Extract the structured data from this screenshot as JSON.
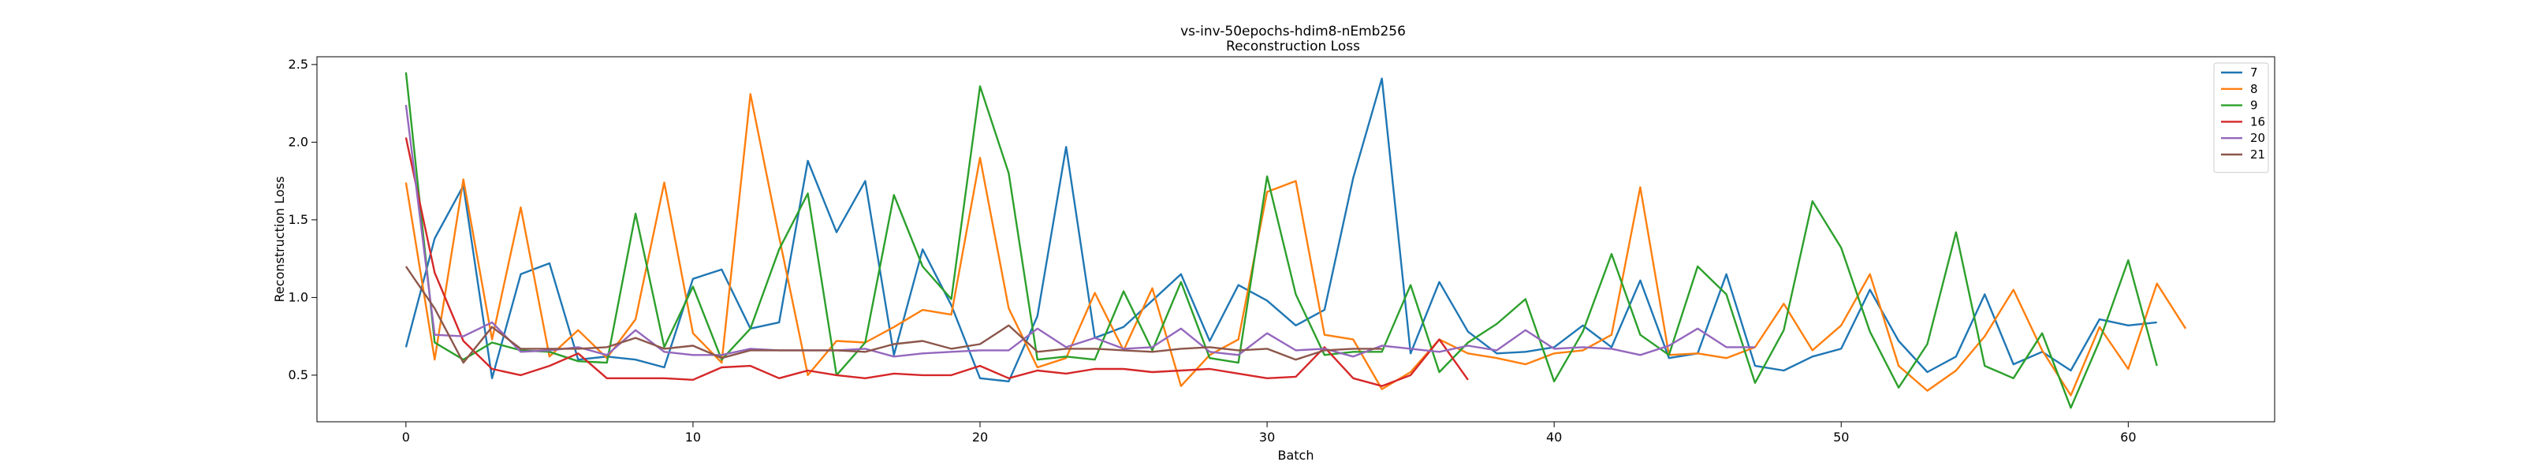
{
  "chart_data": {
    "type": "line",
    "title": "vs-inv-50epochs-hdim8-nEmb256",
    "subtitle": "Reconstruction Loss",
    "xlabel": "Batch",
    "ylabel": "Reconstruction Loss",
    "xlim": [
      -3.1,
      65.1
    ],
    "ylim": [
      0.2,
      2.55
    ],
    "xticks": [
      0,
      10,
      20,
      30,
      40,
      50,
      60
    ],
    "yticks": [
      0.5,
      1.0,
      1.5,
      2.0,
      2.5
    ],
    "ytick_labels": [
      "0.5",
      "1.0",
      "1.5",
      "2.0",
      "2.5"
    ],
    "grid": false,
    "legend_position": "top-right",
    "series": [
      {
        "name": "7",
        "color": "#1f77b4",
        "values": [
          0.68,
          1.38,
          1.72,
          0.48,
          1.15,
          1.22,
          0.6,
          0.62,
          0.6,
          0.55,
          1.12,
          1.18,
          0.8,
          0.84,
          1.88,
          1.42,
          1.75,
          0.63,
          1.31,
          0.95,
          0.48,
          0.46,
          0.88,
          1.97,
          0.74,
          0.81,
          0.98,
          1.15,
          0.72,
          1.08,
          0.98,
          0.82,
          0.92,
          1.77,
          2.41,
          0.64,
          1.1,
          0.78,
          0.64,
          0.65,
          0.68,
          0.82,
          0.68,
          1.11,
          0.61,
          0.64,
          1.15,
          0.56,
          0.53,
          0.62,
          0.67,
          1.05,
          0.72,
          0.52,
          0.62,
          1.02,
          0.57,
          0.65,
          0.53,
          0.86,
          0.82,
          0.84
        ]
      },
      {
        "name": "8",
        "color": "#ff7f0e",
        "values": [
          1.74,
          0.6,
          1.76,
          0.73,
          1.58,
          0.62,
          0.79,
          0.61,
          0.86,
          1.74,
          0.77,
          0.58,
          2.31,
          1.39,
          0.5,
          0.72,
          0.71,
          0.81,
          0.92,
          0.89,
          1.9,
          0.93,
          0.55,
          0.61,
          1.03,
          0.66,
          1.06,
          0.43,
          0.63,
          0.73,
          1.68,
          1.75,
          0.76,
          0.73,
          0.41,
          0.52,
          0.73,
          0.64,
          0.61,
          0.57,
          0.64,
          0.66,
          0.76,
          1.71,
          0.63,
          0.64,
          0.61,
          0.68,
          0.96,
          0.66,
          0.82,
          1.15,
          0.56,
          0.4,
          0.53,
          0.75,
          1.05,
          0.66,
          0.37,
          0.81,
          0.54,
          1.09,
          0.8
        ]
      },
      {
        "name": "9",
        "color": "#2ca02c",
        "values": [
          2.45,
          0.71,
          0.6,
          0.71,
          0.66,
          0.65,
          0.59,
          0.58,
          1.54,
          0.68,
          1.07,
          0.6,
          0.8,
          1.31,
          1.67,
          0.5,
          0.71,
          1.66,
          1.2,
          0.99,
          2.36,
          1.8,
          0.6,
          0.62,
          0.6,
          1.04,
          0.66,
          1.1,
          0.61,
          0.58,
          1.78,
          1.02,
          0.63,
          0.65,
          0.65,
          1.08,
          0.52,
          0.71,
          0.83,
          0.99,
          0.46,
          0.78,
          1.28,
          0.76,
          0.63,
          1.2,
          1.02,
          0.45,
          0.79,
          1.62,
          1.32,
          0.78,
          0.42,
          0.7,
          1.42,
          0.56,
          0.48,
          0.77,
          0.29,
          0.72,
          1.24,
          0.56
        ]
      },
      {
        "name": "16",
        "color": "#d62728",
        "values": [
          2.03,
          1.16,
          0.72,
          0.54,
          0.5,
          0.56,
          0.64,
          0.48,
          0.48,
          0.48,
          0.47,
          0.55,
          0.56,
          0.48,
          0.53,
          0.5,
          0.48,
          0.51,
          0.5,
          0.5,
          0.56,
          0.48,
          0.53,
          0.51,
          0.54,
          0.54,
          0.52,
          0.53,
          0.54,
          0.51,
          0.48,
          0.49,
          0.68,
          0.48,
          0.43,
          0.5,
          0.73,
          0.47
        ]
      },
      {
        "name": "20",
        "color": "#9467bd",
        "values": [
          2.24,
          0.76,
          0.75,
          0.84,
          0.65,
          0.66,
          0.68,
          0.63,
          0.79,
          0.65,
          0.63,
          0.63,
          0.67,
          0.66,
          0.66,
          0.66,
          0.67,
          0.62,
          0.64,
          0.65,
          0.66,
          0.66,
          0.8,
          0.68,
          0.74,
          0.67,
          0.68,
          0.8,
          0.65,
          0.63,
          0.77,
          0.66,
          0.67,
          0.62,
          0.69,
          0.67,
          0.65,
          0.69,
          0.66,
          0.79,
          0.67,
          0.68,
          0.67,
          0.63,
          0.69,
          0.8,
          0.68,
          0.68
        ]
      },
      {
        "name": "21",
        "color": "#8c564b",
        "values": [
          1.2,
          0.93,
          0.58,
          0.81,
          0.67,
          0.67,
          0.67,
          0.68,
          0.74,
          0.67,
          0.69,
          0.61,
          0.66,
          0.66,
          0.66,
          0.66,
          0.65,
          0.7,
          0.72,
          0.67,
          0.7,
          0.82,
          0.65,
          0.67,
          0.67,
          0.66,
          0.65,
          0.67,
          0.68,
          0.66,
          0.67,
          0.6,
          0.66,
          0.67,
          0.67
        ]
      }
    ]
  }
}
